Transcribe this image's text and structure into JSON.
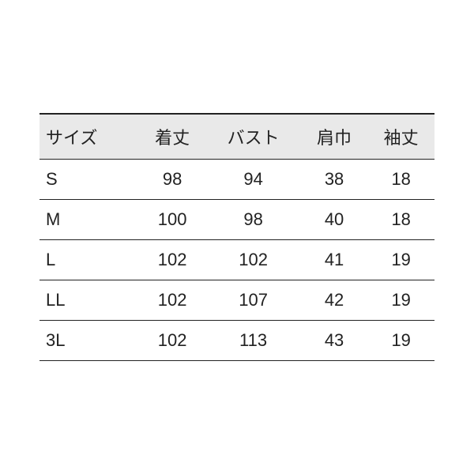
{
  "size_table": {
    "type": "table",
    "columns": [
      "サイズ",
      "着丈",
      "バスト",
      "肩巾",
      "袖丈"
    ],
    "rows": [
      [
        "S",
        "98",
        "94",
        "38",
        "18"
      ],
      [
        "M",
        "100",
        "98",
        "40",
        "18"
      ],
      [
        "L",
        "102",
        "102",
        "41",
        "19"
      ],
      [
        "LL",
        "102",
        "107",
        "42",
        "19"
      ],
      [
        "3L",
        "102",
        "113",
        "43",
        "19"
      ]
    ],
    "header_bg": "#e9e9e9",
    "text_color": "#222222",
    "border_color": "#222222",
    "font_size": 22,
    "col_align": [
      "left",
      "center",
      "center",
      "center",
      "center"
    ]
  }
}
